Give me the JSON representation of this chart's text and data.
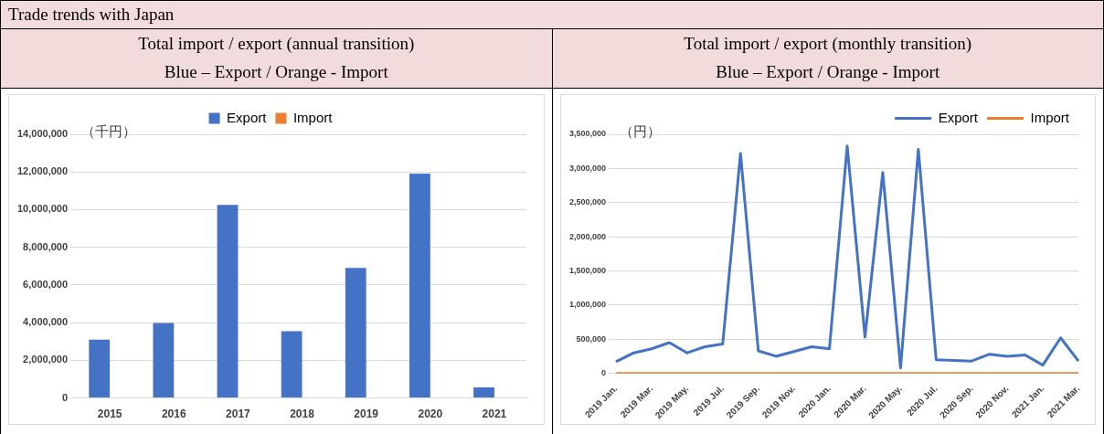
{
  "chart_data": [
    {
      "type": "bar",
      "title": "Total import / export (annual transition)",
      "subtitle": "Blue – Export / Orange - Import",
      "annotations": [
        "Trade trends with Japan"
      ],
      "ylabel": "（千円）",
      "categories": [
        "2015",
        "2016",
        "2017",
        "2018",
        "2019",
        "2020",
        "2021"
      ],
      "series": [
        {
          "name": "Export",
          "color": "#4472c4",
          "values": [
            3100000,
            3980000,
            10250000,
            3550000,
            6900000,
            11920000,
            560000
          ]
        },
        {
          "name": "Import",
          "color": "#ed7d31",
          "values": [
            0,
            0,
            0,
            0,
            0,
            0,
            0
          ]
        }
      ],
      "ylim": [
        0,
        14000000
      ],
      "yticks": [
        0,
        {
          "value": 2000000,
          "label": "2,000,000"
        },
        {
          "value": 4000000,
          "label": "4,000,000"
        },
        {
          "value": 6000000,
          "label": "6,000,000"
        },
        {
          "value": 8000000,
          "label": "8,000,000"
        },
        {
          "value": 10000000,
          "label": "10,000,000"
        },
        {
          "value": 12000000,
          "label": "12,000,000"
        },
        {
          "value": 14000000,
          "label": "14,000,000"
        }
      ],
      "grid": "y",
      "legend": "top"
    },
    {
      "type": "line",
      "title": "Total import / export (monthly transition)",
      "subtitle": "Blue – Export / Orange - Import",
      "ylabel": "（円）",
      "categories": [
        "2019 Jan.",
        null,
        "2019 Mar.",
        null,
        "2019 May.",
        null,
        "2019 Jul.",
        null,
        "2019 Sep.",
        null,
        "2019 Nov.",
        null,
        "2020 Jan.",
        null,
        "2020 Mar.",
        null,
        "2020 May.",
        null,
        "2020 Jul.",
        null,
        "2020 Sep.",
        null,
        "2020 Nov.",
        null,
        "2021 Jan.",
        null,
        "2021 Mar."
      ],
      "series": [
        {
          "name": "Export",
          "color": "#4472c4",
          "values": [
            170000,
            300000,
            360000,
            450000,
            300000,
            390000,
            430000,
            3220000,
            330000,
            250000,
            320000,
            390000,
            360000,
            3330000,
            530000,
            2940000,
            80000,
            3280000,
            200000,
            190000,
            180000,
            280000,
            250000,
            270000,
            120000,
            520000,
            180000
          ]
        },
        {
          "name": "Import",
          "color": "#ed7d31",
          "values": [
            0,
            0,
            0,
            0,
            0,
            0,
            0,
            0,
            0,
            0,
            0,
            0,
            0,
            0,
            0,
            0,
            0,
            0,
            0,
            0,
            0,
            0,
            0,
            0,
            0,
            0,
            0
          ]
        }
      ],
      "ylim": [
        0,
        3500000
      ],
      "yticks": [
        0,
        {
          "value": 500000,
          "label": "500,000"
        },
        {
          "value": 1000000,
          "label": "1,000,000"
        },
        {
          "value": 1500000,
          "label": "1,500,000"
        },
        {
          "value": 2000000,
          "label": "2,000,000"
        },
        {
          "value": 2500000,
          "label": "2,500,000"
        },
        {
          "value": 3000000,
          "label": "3,000,000"
        },
        {
          "value": 3500000,
          "label": "3,500,000"
        }
      ],
      "grid": "y",
      "legend": "top right",
      "marker": "none"
    }
  ]
}
